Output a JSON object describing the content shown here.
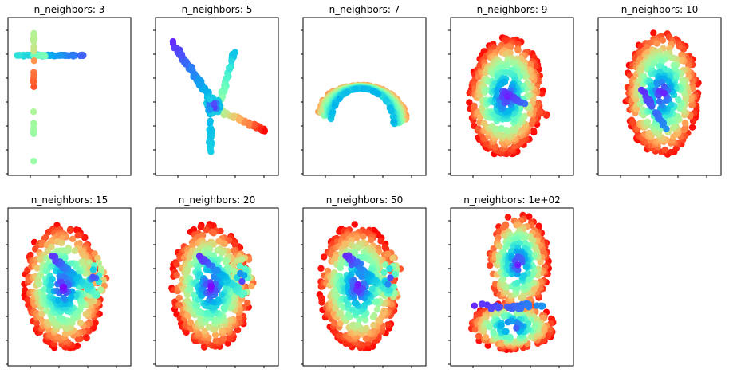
{
  "chart_data": [
    {
      "type": "scatter",
      "title": "n_neighbors: 3",
      "shape": "cross",
      "grid": false,
      "colormap": "rainbow"
    },
    {
      "type": "scatter",
      "title": "n_neighbors: 5",
      "shape": "star",
      "grid": false,
      "colormap": "rainbow"
    },
    {
      "type": "scatter",
      "title": "n_neighbors: 7",
      "shape": "arch",
      "grid": false,
      "colormap": "rainbow"
    },
    {
      "type": "scatter",
      "title": "n_neighbors: 9",
      "shape": "horseshoe",
      "grid": false,
      "colormap": "rainbow"
    },
    {
      "type": "scatter",
      "title": "n_neighbors: 10",
      "shape": "ring-folded",
      "grid": false,
      "colormap": "rainbow"
    },
    {
      "type": "scatter",
      "title": "n_neighbors: 15",
      "shape": "ellipse-fold",
      "grid": false,
      "colormap": "rainbow"
    },
    {
      "type": "scatter",
      "title": "n_neighbors: 20",
      "shape": "ellipse-fold",
      "grid": false,
      "colormap": "rainbow"
    },
    {
      "type": "scatter",
      "title": "n_neighbors: 50",
      "shape": "ellipse-fold",
      "grid": false,
      "colormap": "rainbow"
    },
    {
      "type": "scatter",
      "title": "n_neighbors: 1e+02",
      "shape": "dome-base",
      "grid": false,
      "colormap": "rainbow"
    }
  ]
}
